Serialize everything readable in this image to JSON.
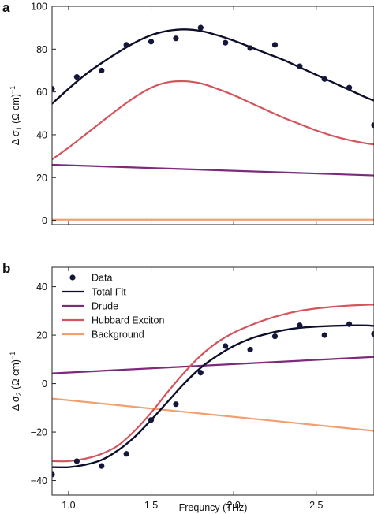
{
  "chart_data": [
    {
      "panel": "a",
      "type": "line",
      "xlim": [
        0.9,
        2.85
      ],
      "ylim": [
        -2,
        100
      ],
      "xticks": [
        1.0,
        1.5,
        2.0,
        2.5
      ],
      "yticks": [
        0,
        20,
        40,
        60,
        80,
        100
      ],
      "ytick_labels": [
        "0",
        "20",
        "40",
        "60",
        "80",
        "100"
      ],
      "ylabel_pre": "Δ σ",
      "ylabel_sub": "1",
      "ylabel_post": " (Ω cm)",
      "ylabel_sup": "−1",
      "xlabel": "",
      "series": [
        {
          "key": "data",
          "kind": "scatter",
          "color": "#15173a",
          "x": [
            0.9,
            1.05,
            1.2,
            1.35,
            1.5,
            1.65,
            1.8,
            1.95,
            2.1,
            2.25,
            2.4,
            2.55,
            2.7,
            2.85
          ],
          "y": [
            61.5,
            67,
            70,
            82,
            83.5,
            85,
            90,
            83,
            80.5,
            82,
            72,
            66,
            62,
            44.5
          ]
        },
        {
          "key": "total_fit",
          "kind": "line",
          "color": "#0d0f2a",
          "x": [
            0.9,
            1.0,
            1.1,
            1.2,
            1.3,
            1.4,
            1.5,
            1.6,
            1.7,
            1.8,
            1.9,
            2.0,
            2.1,
            2.2,
            2.3,
            2.4,
            2.5,
            2.6,
            2.7,
            2.8,
            2.85
          ],
          "y": [
            54.5,
            61.5,
            68,
            73.5,
            78.5,
            83,
            86.5,
            88.5,
            89.2,
            88.5,
            86.5,
            84,
            81,
            78,
            75,
            71.5,
            68,
            64.5,
            61,
            57.5,
            56
          ]
        },
        {
          "key": "hubbard",
          "kind": "line",
          "color": "#d4545e",
          "x": [
            0.9,
            1.0,
            1.1,
            1.2,
            1.3,
            1.4,
            1.5,
            1.6,
            1.7,
            1.8,
            1.9,
            2.0,
            2.1,
            2.2,
            2.3,
            2.4,
            2.5,
            2.6,
            2.7,
            2.8,
            2.85
          ],
          "y": [
            28.5,
            34,
            40,
            46,
            52,
            57.5,
            62,
            64.5,
            65,
            64,
            61.5,
            58.5,
            55,
            51.5,
            48,
            45,
            42,
            39.5,
            37.5,
            36,
            35.5
          ]
        },
        {
          "key": "drude",
          "kind": "line",
          "color": "#7d2a7c",
          "x": [
            0.9,
            2.85
          ],
          "y": [
            26,
            21
          ]
        },
        {
          "key": "background",
          "kind": "line",
          "color": "#f0a070",
          "x": [
            0.9,
            2.85
          ],
          "y": [
            0.3,
            0.3
          ]
        }
      ]
    },
    {
      "panel": "b",
      "type": "line",
      "xlim": [
        0.9,
        2.85
      ],
      "ylim": [
        -46,
        48
      ],
      "xticks": [
        1.0,
        1.5,
        2.0,
        2.5
      ],
      "xtick_labels": [
        "1.0",
        "1.5",
        "2.0",
        "2.5"
      ],
      "yticks": [
        -40,
        -20,
        0,
        20,
        40
      ],
      "ytick_labels": [
        "−40",
        "−20",
        "0",
        "20",
        "40"
      ],
      "ylabel_pre": "Δ σ",
      "ylabel_sub": "2",
      "ylabel_post": " (Ω cm)",
      "ylabel_sup": "−1",
      "xlabel": "Frequncy (THz)",
      "legend": {
        "placement": "top-left",
        "entries": [
          {
            "label": "Data",
            "key": "data"
          },
          {
            "label": "Total Fit",
            "key": "total_fit"
          },
          {
            "label": "Drude",
            "key": "drude"
          },
          {
            "label": "Hubbard Exciton",
            "key": "hubbard"
          },
          {
            "label": "Background",
            "key": "background"
          }
        ]
      },
      "series": [
        {
          "key": "data",
          "kind": "scatter",
          "color": "#15173a",
          "x": [
            0.9,
            1.05,
            1.2,
            1.35,
            1.5,
            1.65,
            1.8,
            1.95,
            2.1,
            2.25,
            2.4,
            2.55,
            2.7,
            2.85
          ],
          "y": [
            -37.5,
            -32,
            -34,
            -29,
            -15,
            -8.5,
            4.5,
            15.5,
            14,
            19.5,
            24,
            20,
            24.5,
            20.5
          ]
        },
        {
          "key": "total_fit",
          "kind": "line",
          "color": "#0d0f2a",
          "x": [
            0.9,
            1.0,
            1.1,
            1.2,
            1.3,
            1.4,
            1.5,
            1.6,
            1.7,
            1.8,
            1.9,
            2.0,
            2.1,
            2.2,
            2.3,
            2.4,
            2.5,
            2.6,
            2.7,
            2.8,
            2.85
          ],
          "y": [
            -34.5,
            -34.5,
            -33.5,
            -31.5,
            -27.5,
            -22,
            -15,
            -7.5,
            0,
            6.5,
            11.5,
            15.5,
            18.5,
            20.5,
            22,
            23,
            23.5,
            23.8,
            24,
            24,
            23.8
          ]
        },
        {
          "key": "hubbard",
          "kind": "line",
          "color": "#d4545e",
          "x": [
            0.9,
            1.0,
            1.1,
            1.2,
            1.3,
            1.4,
            1.5,
            1.6,
            1.7,
            1.8,
            1.9,
            2.0,
            2.1,
            2.2,
            2.3,
            2.4,
            2.5,
            2.6,
            2.7,
            2.8,
            2.85
          ],
          "y": [
            -32,
            -32,
            -31,
            -29,
            -25.5,
            -19.5,
            -12,
            -3.5,
            4.5,
            11.5,
            17,
            21,
            24,
            26.5,
            28.5,
            30,
            31,
            31.7,
            32.2,
            32.5,
            32.6
          ]
        },
        {
          "key": "drude",
          "kind": "line",
          "color": "#7d2a7c",
          "x": [
            0.9,
            2.85
          ],
          "y": [
            4.2,
            11
          ]
        },
        {
          "key": "background",
          "kind": "line",
          "color": "#f0a070",
          "x": [
            0.9,
            2.85
          ],
          "y": [
            -6.2,
            -19.5
          ]
        }
      ]
    }
  ]
}
